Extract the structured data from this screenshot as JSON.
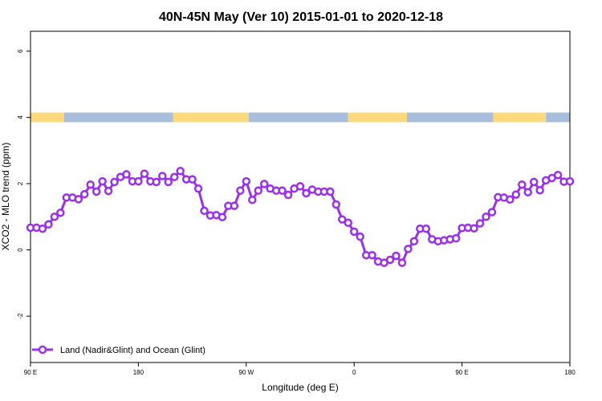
{
  "chart_data": {
    "type": "line",
    "title": "40N-45N May (Ver 10)   2015-01-01 to 2020-12-18",
    "xlabel": "Longitude (deg E)",
    "ylabel": "XCO2 - MLO trend (ppm)",
    "x_tick_labels": [
      "90 E",
      "180",
      "90 W",
      "0",
      "90 E",
      "180"
    ],
    "y_tick_labels": [
      "-2",
      "0",
      "2",
      "4",
      "6"
    ],
    "ylim": [
      -3.4,
      6.6
    ],
    "grid": false,
    "legend_position": "bottom-left",
    "colors": {
      "series": "#9b30e8",
      "land": "#fcd97c",
      "ocean": "#a9bedc"
    },
    "land_ocean_strip": {
      "y_value": 4,
      "segments": [
        {
          "type": "land",
          "from": 90,
          "to": 118
        },
        {
          "type": "ocean",
          "from": 118,
          "to": 209
        },
        {
          "type": "land",
          "from": 209,
          "to": 272
        },
        {
          "type": "ocean",
          "from": 272,
          "to": 355
        },
        {
          "type": "land",
          "from": 355,
          "to": 404
        },
        {
          "type": "ocean",
          "from": 404,
          "to": 476
        },
        {
          "type": "land",
          "from": 476,
          "to": 520
        },
        {
          "type": "ocean",
          "from": 520,
          "to": 540
        }
      ]
    },
    "series": [
      {
        "name": "Land (Nadir&Glint) and Ocean (Glint)",
        "x": [
          90,
          95,
          100,
          105,
          110,
          115,
          120,
          125,
          130,
          135,
          140,
          145,
          150,
          155,
          160,
          165,
          170,
          175,
          180,
          185,
          190,
          195,
          200,
          205,
          210,
          215,
          220,
          225,
          230,
          235,
          240,
          245,
          250,
          255,
          260,
          265,
          270,
          275,
          280,
          285,
          290,
          295,
          300,
          305,
          310,
          315,
          320,
          325,
          330,
          335,
          340,
          345,
          350,
          355,
          360,
          365,
          370,
          375,
          380,
          385,
          390,
          395,
          400,
          405,
          410,
          415,
          420,
          425,
          430,
          435,
          440,
          445,
          450,
          455,
          460,
          465,
          470,
          475,
          480,
          485,
          490,
          495,
          500,
          505,
          510,
          515,
          520,
          525,
          530,
          535,
          540
        ],
        "values": [
          0.67,
          0.67,
          0.64,
          0.77,
          1.0,
          1.12,
          1.58,
          1.58,
          1.53,
          1.68,
          1.97,
          1.76,
          2.07,
          1.78,
          2.05,
          2.2,
          2.28,
          2.07,
          2.07,
          2.3,
          2.07,
          2.05,
          2.23,
          2.05,
          2.2,
          2.38,
          2.13,
          2.13,
          1.85,
          1.18,
          1.04,
          1.05,
          0.99,
          1.33,
          1.33,
          1.79,
          2.07,
          1.51,
          1.79,
          1.99,
          1.85,
          1.79,
          1.79,
          1.66,
          1.85,
          1.92,
          1.71,
          1.82,
          1.76,
          1.76,
          1.76,
          1.37,
          0.92,
          0.82,
          0.55,
          0.4,
          -0.16,
          -0.16,
          -0.35,
          -0.39,
          -0.3,
          -0.18,
          -0.39,
          0.03,
          0.26,
          0.64,
          0.64,
          0.32,
          0.26,
          0.29,
          0.32,
          0.35,
          0.66,
          0.67,
          0.65,
          0.8,
          1.0,
          1.14,
          1.59,
          1.58,
          1.52,
          1.67,
          1.97,
          1.74,
          2.05,
          1.8,
          2.1,
          2.17,
          2.26,
          2.06,
          2.07
        ]
      }
    ]
  }
}
